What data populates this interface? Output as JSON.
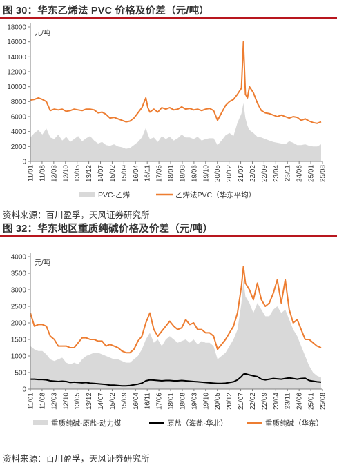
{
  "figures": [
    {
      "title": "图 30：华东乙烯法 PVC 价格及价差（元/吨）",
      "source": "资料来源：百川盈孚，天风证券研究所"
    },
    {
      "title": "图 32：华东地区重质纯碱价格及价差（元/吨）",
      "source": "资料来源：百川盈孚，天风证券研究所"
    }
  ],
  "colors": {
    "orange": "#ED7D31",
    "gray": "#D9D9D9",
    "black": "#000000",
    "rule": "#B8161E"
  },
  "chart_data": [
    {
      "type": "line",
      "unit": "元/吨",
      "ylim": [
        0,
        18000
      ],
      "yticks": [
        0,
        2000,
        4000,
        6000,
        8000,
        10000,
        12000,
        14000,
        16000,
        18000
      ],
      "xlim": [
        2011.0,
        2025.67
      ],
      "xticks": [
        "11/01",
        "11/08",
        "12/03",
        "12/10",
        "13/05",
        "13/12",
        "14/07",
        "15/02",
        "15/09",
        "16/04",
        "16/11",
        "17/06",
        "18/01",
        "18/08",
        "19/03",
        "19/10",
        "20/05",
        "20/12",
        "21/07",
        "22/02",
        "22/09",
        "23/04",
        "23/11",
        "24/06",
        "25/01",
        "25/08"
      ],
      "legend_position": "bottom",
      "series": [
        {
          "name": "PVC-乙烯",
          "style": "area",
          "color": "#D9D9D9",
          "x": [
            2011.0,
            2011.2,
            2011.4,
            2011.6,
            2011.8,
            2012.0,
            2012.2,
            2012.4,
            2012.6,
            2012.8,
            2013.0,
            2013.2,
            2013.4,
            2013.6,
            2013.8,
            2014.0,
            2014.2,
            2014.4,
            2014.6,
            2014.8,
            2015.0,
            2015.2,
            2015.4,
            2015.6,
            2015.8,
            2016.0,
            2016.2,
            2016.4,
            2016.6,
            2016.8,
            2016.9,
            2017.0,
            2017.2,
            2017.4,
            2017.6,
            2017.8,
            2018.0,
            2018.2,
            2018.4,
            2018.6,
            2018.8,
            2019.0,
            2019.2,
            2019.4,
            2019.6,
            2019.8,
            2020.0,
            2020.2,
            2020.4,
            2020.6,
            2020.8,
            2021.0,
            2021.2,
            2021.4,
            2021.6,
            2021.7,
            2021.8,
            2021.9,
            2022.0,
            2022.2,
            2022.4,
            2022.6,
            2022.8,
            2023.0,
            2023.2,
            2023.4,
            2023.6,
            2023.8,
            2024.0,
            2024.2,
            2024.4,
            2024.6,
            2024.8,
            2025.0,
            2025.2,
            2025.4,
            2025.6
          ],
          "values": [
            3200,
            3800,
            4200,
            3600,
            4400,
            3200,
            3000,
            3600,
            2800,
            3300,
            2600,
            3000,
            3400,
            2700,
            3100,
            3400,
            2800,
            2400,
            2600,
            2200,
            2100,
            2300,
            2000,
            1900,
            1700,
            1800,
            2200,
            2600,
            3200,
            4500,
            3600,
            3000,
            3200,
            2600,
            3400,
            3000,
            3300,
            2800,
            3100,
            3600,
            3200,
            3200,
            3000,
            3300,
            2800,
            3000,
            3100,
            3100,
            2200,
            2800,
            3500,
            3800,
            3400,
            5200,
            6400,
            7800,
            5800,
            4800,
            4200,
            3800,
            3300,
            3200,
            3000,
            2800,
            2600,
            2500,
            2400,
            2300,
            2700,
            2500,
            2200,
            2200,
            2300,
            2100,
            2000,
            2000,
            2300
          ]
        },
        {
          "name": "乙烯法PVC（华东平均）",
          "style": "line",
          "color": "#ED7D31",
          "x": [
            2011.0,
            2011.2,
            2011.4,
            2011.6,
            2011.8,
            2012.0,
            2012.2,
            2012.4,
            2012.6,
            2012.8,
            2013.0,
            2013.2,
            2013.4,
            2013.6,
            2013.8,
            2014.0,
            2014.2,
            2014.4,
            2014.6,
            2014.8,
            2015.0,
            2015.2,
            2015.4,
            2015.6,
            2015.8,
            2016.0,
            2016.2,
            2016.4,
            2016.6,
            2016.8,
            2016.9,
            2017.0,
            2017.2,
            2017.4,
            2017.6,
            2017.8,
            2018.0,
            2018.2,
            2018.4,
            2018.6,
            2018.8,
            2019.0,
            2019.2,
            2019.4,
            2019.6,
            2019.8,
            2020.0,
            2020.2,
            2020.4,
            2020.6,
            2020.8,
            2021.0,
            2021.2,
            2021.4,
            2021.6,
            2021.7,
            2021.8,
            2021.9,
            2022.0,
            2022.2,
            2022.4,
            2022.6,
            2022.8,
            2023.0,
            2023.2,
            2023.4,
            2023.6,
            2023.8,
            2024.0,
            2024.2,
            2024.4,
            2024.6,
            2024.8,
            2025.0,
            2025.2,
            2025.4,
            2025.6
          ],
          "values": [
            8200,
            8300,
            8500,
            8300,
            8000,
            6800,
            7000,
            6900,
            7000,
            6700,
            6800,
            7000,
            6900,
            6800,
            7000,
            7000,
            6900,
            6500,
            6600,
            6300,
            5800,
            5900,
            5700,
            5500,
            5300,
            5400,
            5800,
            6500,
            7200,
            8500,
            7200,
            6600,
            7000,
            6600,
            7200,
            7000,
            7200,
            6900,
            7000,
            7300,
            7000,
            7100,
            6900,
            7000,
            6800,
            7000,
            7100,
            6800,
            5500,
            6500,
            7500,
            8000,
            8300,
            9000,
            9800,
            16000,
            9000,
            8500,
            10000,
            9200,
            7800,
            6800,
            6500,
            6400,
            6200,
            6000,
            6200,
            6000,
            5800,
            6000,
            5900,
            5500,
            5700,
            5400,
            5200,
            5100,
            5300
          ]
        }
      ]
    },
    {
      "type": "line",
      "unit": "元/吨",
      "ylim": [
        0,
        4000
      ],
      "yticks": [
        0,
        500,
        1000,
        1500,
        2000,
        2500,
        3000,
        3500,
        4000
      ],
      "xlim": [
        2011.0,
        2025.67
      ],
      "xticks": [
        "11/01",
        "11/08",
        "12/03",
        "12/10",
        "13/05",
        "13/12",
        "14/07",
        "15/02",
        "15/09",
        "16/04",
        "16/11",
        "17/06",
        "18/01",
        "18/08",
        "19/03",
        "19/10",
        "20/05",
        "20/12",
        "21/07",
        "22/02",
        "22/09",
        "23/04",
        "23/11",
        "24/06",
        "25/01",
        "25/08"
      ],
      "legend_position": "bottom",
      "series": [
        {
          "name": "重质纯碱-原盐-动力煤",
          "style": "area",
          "color": "#D9D9D9",
          "x": [
            2011.0,
            2011.2,
            2011.4,
            2011.6,
            2011.8,
            2012.0,
            2012.2,
            2012.4,
            2012.6,
            2012.8,
            2013.0,
            2013.2,
            2013.4,
            2013.6,
            2013.8,
            2014.0,
            2014.2,
            2014.4,
            2014.6,
            2014.8,
            2015.0,
            2015.2,
            2015.4,
            2015.6,
            2015.8,
            2016.0,
            2016.2,
            2016.4,
            2016.6,
            2016.8,
            2017.0,
            2017.2,
            2017.4,
            2017.6,
            2017.8,
            2018.0,
            2018.2,
            2018.4,
            2018.6,
            2018.8,
            2019.0,
            2019.2,
            2019.4,
            2019.6,
            2019.8,
            2020.0,
            2020.2,
            2020.4,
            2020.6,
            2020.8,
            2021.0,
            2021.2,
            2021.4,
            2021.6,
            2021.7,
            2021.8,
            2022.0,
            2022.2,
            2022.4,
            2022.6,
            2022.8,
            2023.0,
            2023.2,
            2023.4,
            2023.6,
            2023.8,
            2024.0,
            2024.2,
            2024.4,
            2024.6,
            2024.8,
            2025.0,
            2025.2,
            2025.4,
            2025.6
          ],
          "values": [
            1300,
            1200,
            1150,
            1150,
            1050,
            900,
            850,
            900,
            950,
            800,
            750,
            800,
            750,
            900,
            1000,
            1050,
            1100,
            1100,
            1050,
            1000,
            950,
            900,
            900,
            850,
            800,
            800,
            900,
            1000,
            1200,
            1500,
            1700,
            1400,
            1500,
            1300,
            1500,
            1600,
            1500,
            1400,
            1450,
            1500,
            1400,
            1500,
            1350,
            1450,
            1400,
            1400,
            1300,
            900,
            1000,
            1100,
            1300,
            1500,
            1800,
            2600,
            3300,
            2800,
            2600,
            2300,
            2600,
            2400,
            2200,
            2200,
            2400,
            2500,
            2300,
            2400,
            2100,
            1800,
            1600,
            1300,
            1000,
            700,
            500,
            400,
            350
          ]
        },
        {
          "name": "原盐（海盐-华北）",
          "style": "line",
          "color": "#000000",
          "x": [
            2011.0,
            2011.2,
            2011.4,
            2011.6,
            2011.8,
            2012.0,
            2012.2,
            2012.4,
            2012.6,
            2012.8,
            2013.0,
            2013.2,
            2013.4,
            2013.6,
            2013.8,
            2014.0,
            2014.2,
            2014.4,
            2014.6,
            2014.8,
            2015.0,
            2015.2,
            2015.4,
            2015.6,
            2015.8,
            2016.0,
            2016.2,
            2016.4,
            2016.6,
            2016.8,
            2017.0,
            2017.2,
            2017.4,
            2017.6,
            2017.8,
            2018.0,
            2018.2,
            2018.4,
            2018.6,
            2018.8,
            2019.0,
            2019.2,
            2019.4,
            2019.6,
            2019.8,
            2020.0,
            2020.2,
            2020.4,
            2020.6,
            2020.8,
            2021.0,
            2021.2,
            2021.4,
            2021.6,
            2021.7,
            2021.8,
            2022.0,
            2022.2,
            2022.4,
            2022.6,
            2022.8,
            2023.0,
            2023.2,
            2023.4,
            2023.6,
            2023.8,
            2024.0,
            2024.2,
            2024.4,
            2024.6,
            2024.8,
            2025.0,
            2025.2,
            2025.4,
            2025.6
          ],
          "values": [
            300,
            300,
            290,
            290,
            280,
            250,
            240,
            230,
            240,
            230,
            200,
            210,
            200,
            190,
            200,
            180,
            170,
            160,
            150,
            140,
            120,
            120,
            110,
            100,
            100,
            110,
            130,
            150,
            180,
            250,
            280,
            270,
            260,
            250,
            260,
            260,
            250,
            250,
            260,
            250,
            240,
            230,
            220,
            210,
            200,
            190,
            180,
            170,
            170,
            180,
            200,
            220,
            280,
            380,
            450,
            460,
            430,
            400,
            380,
            300,
            280,
            300,
            320,
            310,
            300,
            320,
            340,
            320,
            300,
            320,
            330,
            260,
            240,
            220,
            210
          ]
        },
        {
          "name": "重质纯碱（华东）",
          "style": "line",
          "color": "#ED7D31",
          "x": [
            2011.0,
            2011.2,
            2011.4,
            2011.6,
            2011.8,
            2012.0,
            2012.2,
            2012.4,
            2012.6,
            2012.8,
            2013.0,
            2013.2,
            2013.4,
            2013.6,
            2013.8,
            2014.0,
            2014.2,
            2014.4,
            2014.6,
            2014.8,
            2015.0,
            2015.2,
            2015.4,
            2015.6,
            2015.8,
            2016.0,
            2016.2,
            2016.4,
            2016.6,
            2016.8,
            2017.0,
            2017.2,
            2017.4,
            2017.6,
            2017.8,
            2018.0,
            2018.2,
            2018.4,
            2018.6,
            2018.8,
            2019.0,
            2019.2,
            2019.4,
            2019.6,
            2019.8,
            2020.0,
            2020.2,
            2020.4,
            2020.6,
            2020.8,
            2021.0,
            2021.2,
            2021.4,
            2021.6,
            2021.7,
            2021.8,
            2022.0,
            2022.2,
            2022.4,
            2022.6,
            2022.8,
            2023.0,
            2023.2,
            2023.4,
            2023.6,
            2023.8,
            2024.0,
            2024.2,
            2024.4,
            2024.6,
            2024.8,
            2025.0,
            2025.2,
            2025.4,
            2025.6
          ],
          "values": [
            2300,
            1900,
            1950,
            1950,
            1900,
            1600,
            1500,
            1300,
            1300,
            1300,
            1250,
            1250,
            1400,
            1550,
            1550,
            1500,
            1500,
            1450,
            1450,
            1300,
            1350,
            1300,
            1250,
            1150,
            1100,
            1100,
            1200,
            1450,
            1600,
            2000,
            2300,
            1800,
            1600,
            1750,
            1900,
            2050,
            1900,
            1800,
            1850,
            2100,
            1950,
            2000,
            1800,
            1800,
            1700,
            1700,
            1600,
            1200,
            1350,
            1500,
            1700,
            1900,
            2300,
            3100,
            3700,
            3200,
            3000,
            2700,
            3200,
            2700,
            2500,
            2600,
            2900,
            3300,
            2600,
            3300,
            2400,
            2000,
            2100,
            1800,
            1500,
            1500,
            1400,
            1300,
            1250
          ]
        }
      ]
    }
  ]
}
